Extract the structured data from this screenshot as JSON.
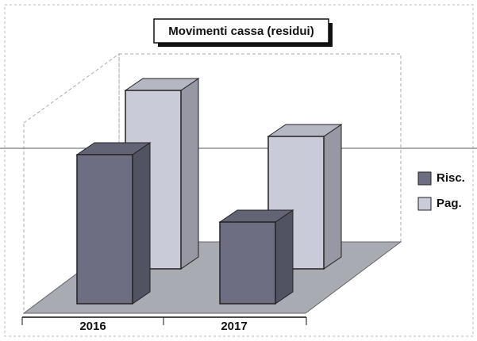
{
  "chart_data": {
    "type": "bar3d",
    "title": "Movimenti cassa (residui)",
    "categories": [
      "2016",
      "2017"
    ],
    "series": [
      {
        "name": "Risc.",
        "color": "#6d6e82",
        "values": [
          188,
          103
        ]
      },
      {
        "name": "Pag.",
        "color": "#c9cbd9",
        "values": [
          225,
          167
        ]
      }
    ]
  }
}
